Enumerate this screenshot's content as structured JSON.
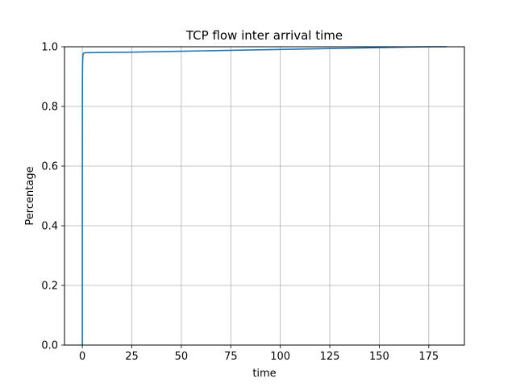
{
  "chart_data": {
    "type": "line",
    "title": "TCP flow inter arrival time",
    "xlabel": "time",
    "ylabel": "Percentage",
    "xlim": [
      -9.0,
      193.0
    ],
    "ylim": [
      0.0,
      1.0
    ],
    "xticks": [
      0,
      25,
      50,
      75,
      100,
      125,
      150,
      175
    ],
    "yticks": [
      0.0,
      0.2,
      0.4,
      0.6,
      0.8,
      1.0
    ],
    "xtick_labels": [
      "0",
      "25",
      "50",
      "75",
      "100",
      "125",
      "150",
      "175"
    ],
    "ytick_labels": [
      "0.0",
      "0.2",
      "0.4",
      "0.6",
      "0.8",
      "1.0"
    ],
    "grid": true,
    "series": [
      {
        "color": "#1f77b4",
        "x": [
          0,
          0,
          0.05,
          0.15,
          0.3,
          0.5,
          1,
          10,
          25,
          50,
          75,
          100,
          125,
          150,
          165,
          175,
          184
        ],
        "y": [
          0.0,
          0.5,
          0.9,
          0.95,
          0.97,
          0.977,
          0.98,
          0.981,
          0.982,
          0.985,
          0.988,
          0.991,
          0.994,
          0.997,
          0.999,
          1.0,
          1.0
        ]
      }
    ]
  }
}
